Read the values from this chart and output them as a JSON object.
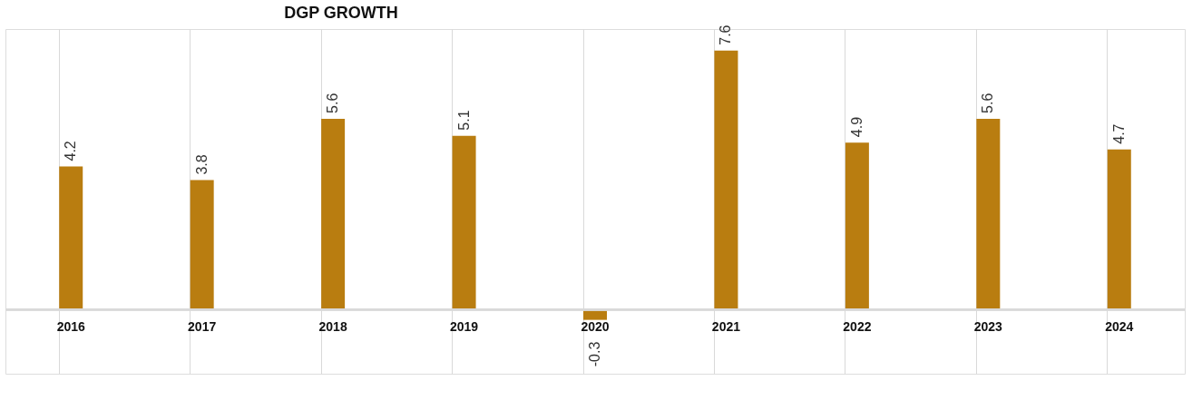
{
  "chart_data": {
    "type": "bar",
    "title": "DGP GROWTH",
    "categories": [
      "2016",
      "2017",
      "2018",
      "2019",
      "2020",
      "2021",
      "2022",
      "2023",
      "2024"
    ],
    "values": [
      4.2,
      3.8,
      5.6,
      5.1,
      -0.3,
      7.6,
      4.9,
      5.6,
      4.7
    ],
    "color": "#b97d10",
    "data_labels": true,
    "grid": "x"
  }
}
